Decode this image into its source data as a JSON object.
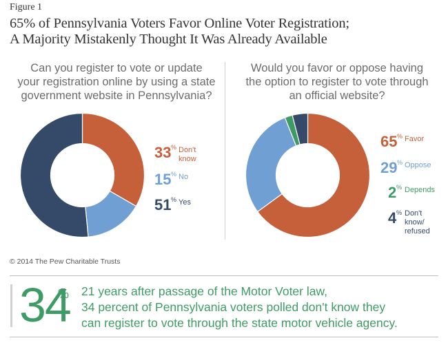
{
  "figure_label": "Figure 1",
  "title_line1": "65% of Pennsylvania Voters Favor Online Voter Registration;",
  "title_line2": "A Majority Mistakenly Thought It Was Already Available",
  "colors": {
    "orange": "#c5603a",
    "blue": "#6f9fd3",
    "navy": "#344a68",
    "green": "#3f9b66"
  },
  "chart_data": [
    {
      "type": "pie",
      "donut": true,
      "title_lines": [
        "Can you register to vote or update",
        "your registration online by using a state",
        "government website in Pennsylvania?"
      ],
      "slices": [
        {
          "value": 33,
          "percent_symbol": "%",
          "label_lines": [
            "Don't",
            "know"
          ],
          "color": "#c5603a"
        },
        {
          "value": 15,
          "percent_symbol": "%",
          "label_lines": [
            "No"
          ],
          "color": "#6f9fd3"
        },
        {
          "value": 51,
          "percent_symbol": "%",
          "label_lines": [
            "Yes"
          ],
          "color": "#344a68"
        }
      ]
    },
    {
      "type": "pie",
      "donut": true,
      "title_lines": [
        "Would you favor or oppose having",
        "the option to register to vote through",
        "an official website?"
      ],
      "slices": [
        {
          "value": 65,
          "percent_symbol": "%",
          "label_lines": [
            "Favor"
          ],
          "color": "#c5603a"
        },
        {
          "value": 29,
          "percent_symbol": "%",
          "label_lines": [
            "Oppose"
          ],
          "color": "#6f9fd3"
        },
        {
          "value": 2,
          "percent_symbol": "%",
          "label_lines": [
            "Depends"
          ],
          "color": "#3f9b66"
        },
        {
          "value": 4,
          "percent_symbol": "%",
          "label_lines": [
            "Don't know/",
            "refused"
          ],
          "color": "#344a68"
        }
      ]
    }
  ],
  "copyright": "© 2014 The Pew Charitable Trusts",
  "callout": {
    "number": "34",
    "percent": "%",
    "lines": [
      "21 years after passage of the Motor Voter law,",
      "34 percent of Pennsylvania voters polled don't know they",
      "can register to vote through the state motor vehicle agency."
    ]
  }
}
